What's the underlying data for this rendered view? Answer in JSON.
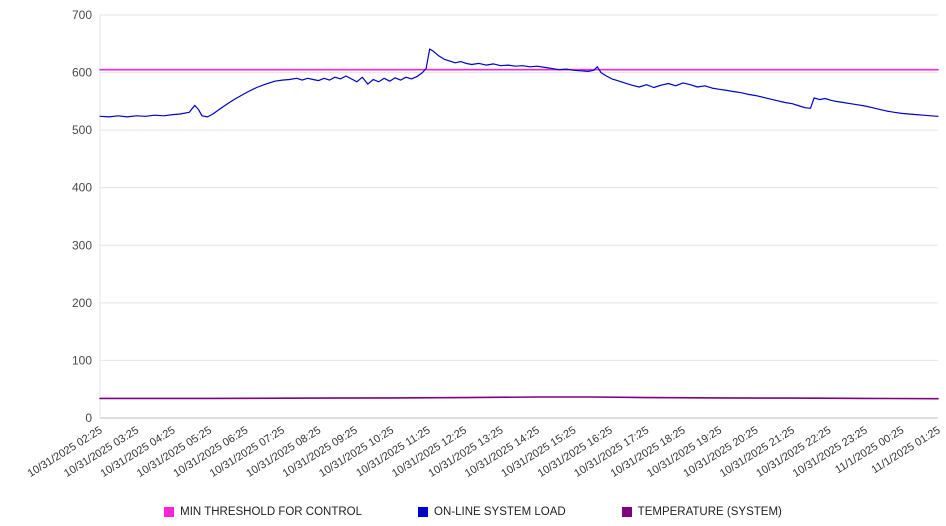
{
  "chart_data": {
    "type": "line",
    "title": "",
    "xlabel": "",
    "ylabel": "",
    "ylim": [
      0,
      700
    ],
    "y_ticks": [
      0,
      100,
      200,
      300,
      400,
      500,
      600,
      700
    ],
    "grid": "horizontal",
    "legend_position": "bottom",
    "x_tick_labels": [
      "10/31/2025 02:25",
      "10/31/2025 03:25",
      "10/31/2025 04:25",
      "10/31/2025 05:25",
      "10/31/2025 06:25",
      "10/31/2025 07:25",
      "10/31/2025 08:25",
      "10/31/2025 09:25",
      "10/31/2025 10:25",
      "10/31/2025 11:25",
      "10/31/2025 12:25",
      "10/31/2025 13:25",
      "10/31/2025 14:25",
      "10/31/2025 15:25",
      "10/31/2025 16:25",
      "10/31/2025 17:25",
      "10/31/2025 18:25",
      "10/31/2025 19:25",
      "10/31/2025 20:25",
      "10/31/2025 21:25",
      "10/31/2025 22:25",
      "10/31/2025 23:25",
      "11/1/2025 00:25",
      "11/1/2025 01:25"
    ],
    "series": [
      {
        "name": "MIN THRESHOLD FOR CONTROL",
        "color": "#ff22dd",
        "stroke_width": 1.6,
        "points": [
          [
            0,
            605
          ],
          [
            23,
            605
          ]
        ]
      },
      {
        "name": "ON-LINE SYSTEM LOAD",
        "color": "#0000cc",
        "stroke_width": 1.2,
        "points": [
          [
            0,
            524
          ],
          [
            0.25,
            523
          ],
          [
            0.5,
            525
          ],
          [
            0.75,
            523
          ],
          [
            1,
            525
          ],
          [
            1.25,
            524
          ],
          [
            1.5,
            526
          ],
          [
            1.75,
            525
          ],
          [
            2,
            527
          ],
          [
            2.2,
            528
          ],
          [
            2.45,
            531
          ],
          [
            2.6,
            543
          ],
          [
            2.7,
            536
          ],
          [
            2.8,
            525
          ],
          [
            2.95,
            523
          ],
          [
            3.1,
            528
          ],
          [
            3.3,
            537
          ],
          [
            3.5,
            546
          ],
          [
            3.7,
            554
          ],
          [
            3.9,
            561
          ],
          [
            4.1,
            568
          ],
          [
            4.3,
            574
          ],
          [
            4.55,
            580
          ],
          [
            4.8,
            585
          ],
          [
            5,
            587
          ],
          [
            5.2,
            588
          ],
          [
            5.4,
            590
          ],
          [
            5.55,
            587
          ],
          [
            5.7,
            590
          ],
          [
            5.85,
            588
          ],
          [
            6,
            586
          ],
          [
            6.15,
            590
          ],
          [
            6.3,
            587
          ],
          [
            6.45,
            592
          ],
          [
            6.6,
            589
          ],
          [
            6.75,
            594
          ],
          [
            6.9,
            589
          ],
          [
            7.05,
            584
          ],
          [
            7.2,
            592
          ],
          [
            7.35,
            580
          ],
          [
            7.5,
            588
          ],
          [
            7.65,
            584
          ],
          [
            7.8,
            590
          ],
          [
            7.95,
            585
          ],
          [
            8.1,
            591
          ],
          [
            8.25,
            587
          ],
          [
            8.4,
            592
          ],
          [
            8.55,
            589
          ],
          [
            8.7,
            593
          ],
          [
            8.85,
            600
          ],
          [
            8.95,
            607
          ],
          [
            9.05,
            641
          ],
          [
            9.15,
            637
          ],
          [
            9.3,
            629
          ],
          [
            9.45,
            623
          ],
          [
            9.6,
            620
          ],
          [
            9.75,
            617
          ],
          [
            9.9,
            619
          ],
          [
            10.05,
            616
          ],
          [
            10.2,
            614
          ],
          [
            10.4,
            616
          ],
          [
            10.6,
            613
          ],
          [
            10.8,
            615
          ],
          [
            11,
            612
          ],
          [
            11.2,
            613
          ],
          [
            11.4,
            611
          ],
          [
            11.6,
            612
          ],
          [
            11.8,
            610
          ],
          [
            12,
            611
          ],
          [
            12.2,
            609
          ],
          [
            12.4,
            607
          ],
          [
            12.6,
            605
          ],
          [
            12.8,
            606
          ],
          [
            13,
            604
          ],
          [
            13.2,
            603
          ],
          [
            13.4,
            602
          ],
          [
            13.55,
            604
          ],
          [
            13.65,
            610
          ],
          [
            13.75,
            600
          ],
          [
            13.9,
            594
          ],
          [
            14.05,
            589
          ],
          [
            14.2,
            586
          ],
          [
            14.4,
            582
          ],
          [
            14.6,
            578
          ],
          [
            14.8,
            575
          ],
          [
            15,
            579
          ],
          [
            15.2,
            574
          ],
          [
            15.4,
            578
          ],
          [
            15.6,
            581
          ],
          [
            15.8,
            577
          ],
          [
            16,
            582
          ],
          [
            16.2,
            579
          ],
          [
            16.4,
            575
          ],
          [
            16.6,
            577
          ],
          [
            16.8,
            573
          ],
          [
            17,
            571
          ],
          [
            17.2,
            569
          ],
          [
            17.4,
            567
          ],
          [
            17.6,
            565
          ],
          [
            17.8,
            562
          ],
          [
            18,
            560
          ],
          [
            18.2,
            557
          ],
          [
            18.4,
            554
          ],
          [
            18.6,
            551
          ],
          [
            18.8,
            548
          ],
          [
            19,
            546
          ],
          [
            19.2,
            542
          ],
          [
            19.35,
            539
          ],
          [
            19.5,
            538
          ],
          [
            19.6,
            556
          ],
          [
            19.75,
            553
          ],
          [
            19.9,
            555
          ],
          [
            20.05,
            552
          ],
          [
            20.2,
            550
          ],
          [
            20.4,
            548
          ],
          [
            20.6,
            546
          ],
          [
            20.8,
            544
          ],
          [
            21,
            542
          ],
          [
            21.2,
            539
          ],
          [
            21.4,
            536
          ],
          [
            21.6,
            533
          ],
          [
            21.8,
            531
          ],
          [
            22,
            529
          ],
          [
            22.2,
            528
          ],
          [
            22.4,
            527
          ],
          [
            22.6,
            526
          ],
          [
            22.8,
            525
          ],
          [
            23,
            524
          ]
        ]
      },
      {
        "name": "TEMPERATURE (SYSTEM)",
        "color": "#800080",
        "stroke_width": 1.6,
        "points": [
          [
            0,
            34
          ],
          [
            3,
            34
          ],
          [
            6,
            34.5
          ],
          [
            8,
            35
          ],
          [
            10,
            35.5
          ],
          [
            12,
            36.5
          ],
          [
            13.5,
            36.5
          ],
          [
            15,
            35.5
          ],
          [
            17,
            35
          ],
          [
            19,
            34.5
          ],
          [
            21,
            34
          ],
          [
            23,
            33.5
          ]
        ]
      }
    ]
  }
}
